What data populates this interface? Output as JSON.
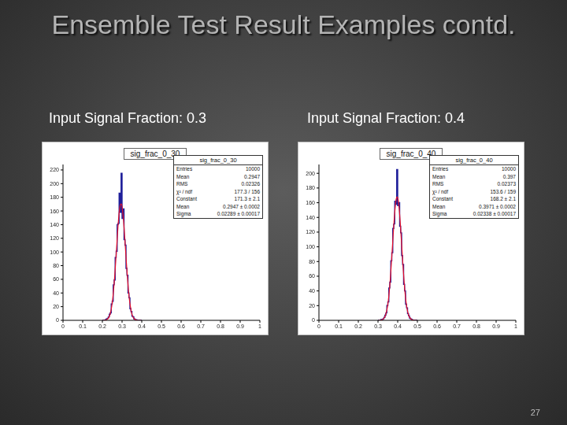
{
  "slide": {
    "title": "Ensemble Test Result Examples contd.",
    "page": 27
  },
  "chart_data": [
    {
      "type": "histogram",
      "subtitle": "Input Signal Fraction: 0.3",
      "title": "sig_frac_0_30",
      "color": "#1f1f9a",
      "bins": [
        0.2,
        0.205,
        0.21,
        0.215,
        0.22,
        0.225,
        0.23,
        0.235,
        0.24,
        0.245,
        0.25,
        0.255,
        0.26,
        0.265,
        0.27,
        0.275,
        0.28,
        0.285,
        0.29,
        0.295,
        0.3,
        0.305,
        0.31,
        0.315,
        0.32,
        0.325,
        0.33,
        0.335,
        0.34,
        0.345,
        0.35,
        0.355,
        0.36,
        0.365,
        0.37,
        0.375,
        0.38,
        0.385,
        0.39,
        0.395,
        0.4
      ],
      "counts": [
        0,
        0,
        0,
        1,
        2,
        3,
        5,
        9,
        11,
        24,
        28,
        52,
        59,
        92,
        101,
        140,
        142,
        186,
        158,
        215,
        149,
        163,
        118,
        110,
        76,
        66,
        40,
        33,
        17,
        13,
        6,
        5,
        2,
        1,
        1,
        0,
        0,
        0,
        0,
        0
      ],
      "fit": {
        "color": "#e8102a",
        "x": [
          0.2025,
          0.2075,
          0.2125,
          0.2175,
          0.2225,
          0.2275,
          0.2325,
          0.2375,
          0.2425,
          0.2475,
          0.2525,
          0.2575,
          0.2625,
          0.2675,
          0.2725,
          0.2775,
          0.2825,
          0.2875,
          0.2925,
          0.2975,
          0.3025,
          0.3075,
          0.3125,
          0.3175,
          0.3225,
          0.3275,
          0.3325,
          0.3375,
          0.3425,
          0.3475,
          0.3525,
          0.3575,
          0.3625,
          0.3675,
          0.3725,
          0.3775,
          0.3825,
          0.3875,
          0.3925,
          0.3975
        ],
        "values": [
          0,
          0,
          0,
          0.6,
          1.2,
          2.3,
          4.2,
          7.5,
          12.7,
          20.5,
          31.5,
          46,
          64,
          85,
          107,
          129,
          149,
          163,
          170,
          170,
          161,
          146,
          126,
          104,
          82,
          62,
          44,
          30,
          20,
          12,
          7,
          4,
          2,
          1,
          0.5,
          0,
          0,
          0,
          0,
          0
        ]
      },
      "xlim": [
        0,
        1
      ],
      "xticks": [
        0,
        0.1,
        0.2,
        0.3,
        0.4,
        0.5,
        0.6,
        0.7,
        0.8,
        0.9,
        1
      ],
      "ylim": [
        0,
        228
      ],
      "yticks": [
        0,
        20,
        40,
        60,
        80,
        100,
        120,
        140,
        160,
        180,
        200,
        220
      ],
      "stats": [
        [
          "Entries",
          "10000"
        ],
        [
          "Mean",
          "0.2947"
        ],
        [
          "RMS",
          "0.02326"
        ],
        [
          "χ² / ndf",
          "177.3 / 156"
        ],
        [
          "Constant",
          "171.3 ± 2.1"
        ],
        [
          "Mean",
          "0.2947 ± 0.0002"
        ],
        [
          "Sigma",
          "0.02289 ± 0.00017"
        ]
      ]
    },
    {
      "type": "histogram",
      "subtitle": "Input Signal Fraction: 0.4",
      "title": "sig_frac_0_40",
      "color": "#1f1f9a",
      "bins": [
        0.3,
        0.305,
        0.31,
        0.315,
        0.32,
        0.325,
        0.33,
        0.335,
        0.34,
        0.345,
        0.35,
        0.355,
        0.36,
        0.365,
        0.37,
        0.375,
        0.38,
        0.385,
        0.39,
        0.395,
        0.4,
        0.405,
        0.41,
        0.415,
        0.42,
        0.425,
        0.43,
        0.435,
        0.44,
        0.445,
        0.45,
        0.455,
        0.46,
        0.465,
        0.47,
        0.475,
        0.48,
        0.485,
        0.49,
        0.495,
        0.5
      ],
      "counts": [
        0,
        0,
        0,
        1,
        1,
        2,
        4,
        7,
        10,
        20,
        25,
        44,
        52,
        81,
        92,
        125,
        131,
        162,
        158,
        205,
        156,
        160,
        128,
        119,
        88,
        76,
        49,
        40,
        22,
        17,
        9,
        6,
        3,
        2,
        1,
        0,
        0,
        0,
        0,
        0
      ],
      "fit": {
        "color": "#e8102a",
        "x": [
          0.3025,
          0.3075,
          0.3125,
          0.3175,
          0.3225,
          0.3275,
          0.3325,
          0.3375,
          0.3425,
          0.3475,
          0.3525,
          0.3575,
          0.3625,
          0.3675,
          0.3725,
          0.3775,
          0.3825,
          0.3875,
          0.3925,
          0.3975,
          0.4025,
          0.4075,
          0.4125,
          0.4175,
          0.4225,
          0.4275,
          0.4325,
          0.4375,
          0.4425,
          0.4475,
          0.4525,
          0.4575,
          0.4625,
          0.4675,
          0.4725,
          0.4775,
          0.4825,
          0.4875,
          0.4925,
          0.4975
        ],
        "values": [
          0,
          0,
          0,
          0.5,
          1,
          2,
          3.7,
          6.5,
          11,
          17.6,
          27,
          40,
          56,
          76,
          97,
          118,
          138,
          154,
          165,
          168,
          164,
          152,
          135,
          114,
          93,
          72,
          53,
          37,
          25,
          16,
          10,
          5.9,
          3.3,
          1.8,
          0.9,
          0.4,
          0,
          0,
          0,
          0
        ]
      },
      "xlim": [
        0,
        1
      ],
      "xticks": [
        0,
        0.1,
        0.2,
        0.3,
        0.4,
        0.5,
        0.6,
        0.7,
        0.8,
        0.9,
        1
      ],
      "ylim": [
        0,
        212
      ],
      "yticks": [
        0,
        20,
        40,
        60,
        80,
        100,
        120,
        140,
        160,
        180,
        200
      ],
      "stats": [
        [
          "Entries",
          "10000"
        ],
        [
          "Mean",
          "0.397"
        ],
        [
          "RMS",
          "0.02373"
        ],
        [
          "χ² / ndf",
          "153.6 / 159"
        ],
        [
          "Constant",
          "168.2 ± 2.1"
        ],
        [
          "Mean",
          "0.3971 ± 0.0002"
        ],
        [
          "Sigma",
          "0.02338 ± 0.00017"
        ]
      ]
    }
  ]
}
